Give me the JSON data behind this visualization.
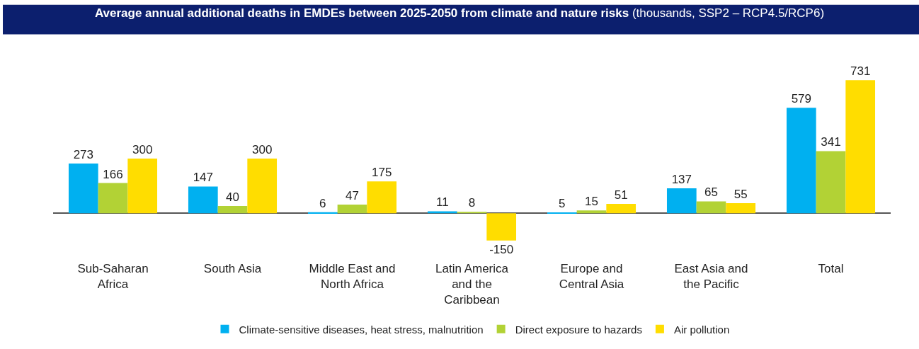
{
  "chart_data": {
    "type": "bar",
    "title": "Average annual additional deaths in EMDEs between 2025-2050 from climate and nature risks",
    "subtitle": "(thousands, SSP2 – RCP4.5/RCP6)",
    "categories": [
      "Sub-Saharan Africa",
      "South Asia",
      "Middle East and North Africa",
      "Latin America and the Caribbean",
      "Europe and Central Asia",
      "East Asia and the Pacific",
      "Total"
    ],
    "series": [
      {
        "name": "Climate-sensitive diseases, heat stress, malnutrition",
        "color": "#00b0f0",
        "values": [
          273,
          147,
          6,
          11,
          5,
          137,
          579
        ]
      },
      {
        "name": "Direct exposure to hazards",
        "color": "#b2d235",
        "values": [
          166,
          40,
          47,
          8,
          15,
          65,
          341
        ]
      },
      {
        "name": "Air pollution",
        "color": "#ffdd00",
        "values": [
          300,
          300,
          175,
          -150,
          51,
          55,
          731
        ]
      }
    ],
    "data_labels": true,
    "legend": "bottom"
  }
}
